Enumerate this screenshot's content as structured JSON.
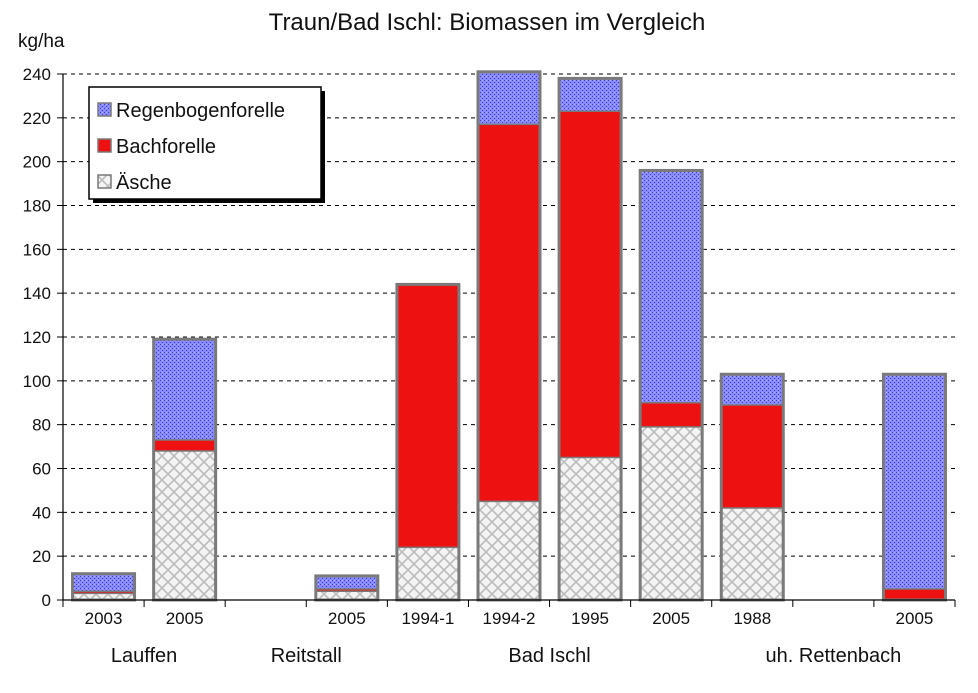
{
  "chart_data": {
    "type": "bar",
    "stacked": true,
    "title": "Traun/Bad Ischl: Biomassen im Vergleich",
    "ylabel": "kg/ha",
    "ylim": [
      0,
      240
    ],
    "yticks": [
      0,
      20,
      40,
      60,
      80,
      100,
      120,
      140,
      160,
      180,
      200,
      220,
      240
    ],
    "legend_position": "top-left",
    "categories": [
      "2003",
      "2005",
      "",
      "2005",
      "1994-1",
      "1994-2",
      "1995",
      "2005",
      "1988",
      "",
      "2005"
    ],
    "groups": [
      {
        "label": "Lauffen",
        "start": 0,
        "end": 1
      },
      {
        "label": "Reitstall",
        "start": 2,
        "end": 3
      },
      {
        "label": "Bad Ischl",
        "start": 4,
        "end": 7
      },
      {
        "label": "uh. Rettenbach",
        "start": 8,
        "end": 10
      }
    ],
    "series": [
      {
        "name": "Äsche",
        "color": "#e8e8e8",
        "pattern": "hatch",
        "values": [
          3,
          68,
          null,
          4,
          24,
          45,
          65,
          79,
          42,
          null,
          0
        ]
      },
      {
        "name": "Bachforelle",
        "color": "#ee1111",
        "pattern": "solid",
        "values": [
          1,
          5,
          null,
          1,
          120,
          172,
          158,
          11,
          47,
          null,
          5
        ]
      },
      {
        "name": "Regenbogenforelle",
        "color": "#7b7bff",
        "pattern": "dots",
        "values": [
          8,
          46,
          null,
          6,
          0,
          24,
          15,
          106,
          14,
          null,
          98
        ]
      }
    ],
    "legend_order": [
      "Regenbogenforelle",
      "Bachforelle",
      "Äsche"
    ]
  }
}
